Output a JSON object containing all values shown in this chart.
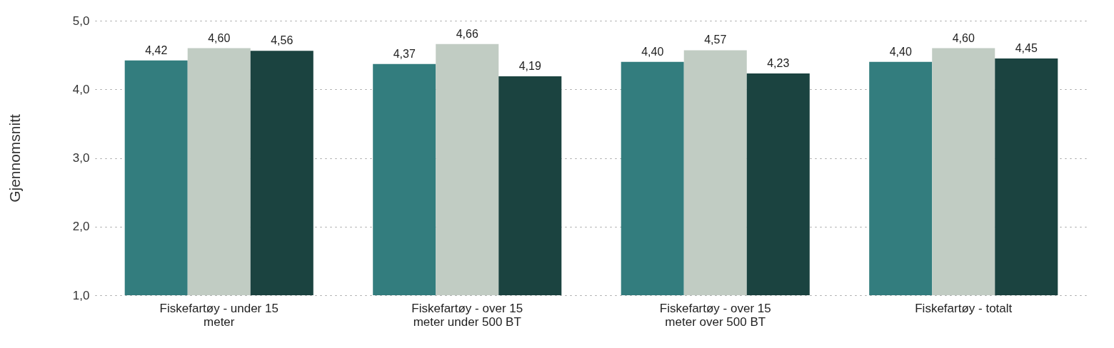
{
  "chart_data": {
    "type": "bar",
    "ylabel": "Gjennomsnitt",
    "categories": [
      "Fiskefartøy - under 15 meter",
      "Fiskefartøy - over 15 meter under 500 BT",
      "Fiskefartøy - over 15 meter over 500 BT",
      "Fiskefartøy - totalt"
    ],
    "series": [
      {
        "color": "#337d7e",
        "values": [
          4.42,
          4.37,
          4.4,
          4.4
        ],
        "value_labels": [
          "4,42",
          "4,37",
          "4,40",
          "4,40"
        ]
      },
      {
        "color": "#c1ccc3",
        "values": [
          4.6,
          4.66,
          4.57,
          4.6
        ],
        "value_labels": [
          "4,60",
          "4,66",
          "4,57",
          "4,60"
        ]
      },
      {
        "color": "#1b4340",
        "values": [
          4.56,
          4.19,
          4.23,
          4.45
        ],
        "value_labels": [
          "4,56",
          "4,19",
          "4,23",
          "4,45"
        ]
      }
    ],
    "ylim": [
      1,
      5
    ],
    "yticks": [
      {
        "value": 1,
        "label": "1,0"
      },
      {
        "value": 2,
        "label": "2,0"
      },
      {
        "value": 3,
        "label": "3,0"
      },
      {
        "value": 4,
        "label": "4,0"
      },
      {
        "value": 5,
        "label": "5,0"
      }
    ],
    "grid": "y",
    "legend": false
  }
}
